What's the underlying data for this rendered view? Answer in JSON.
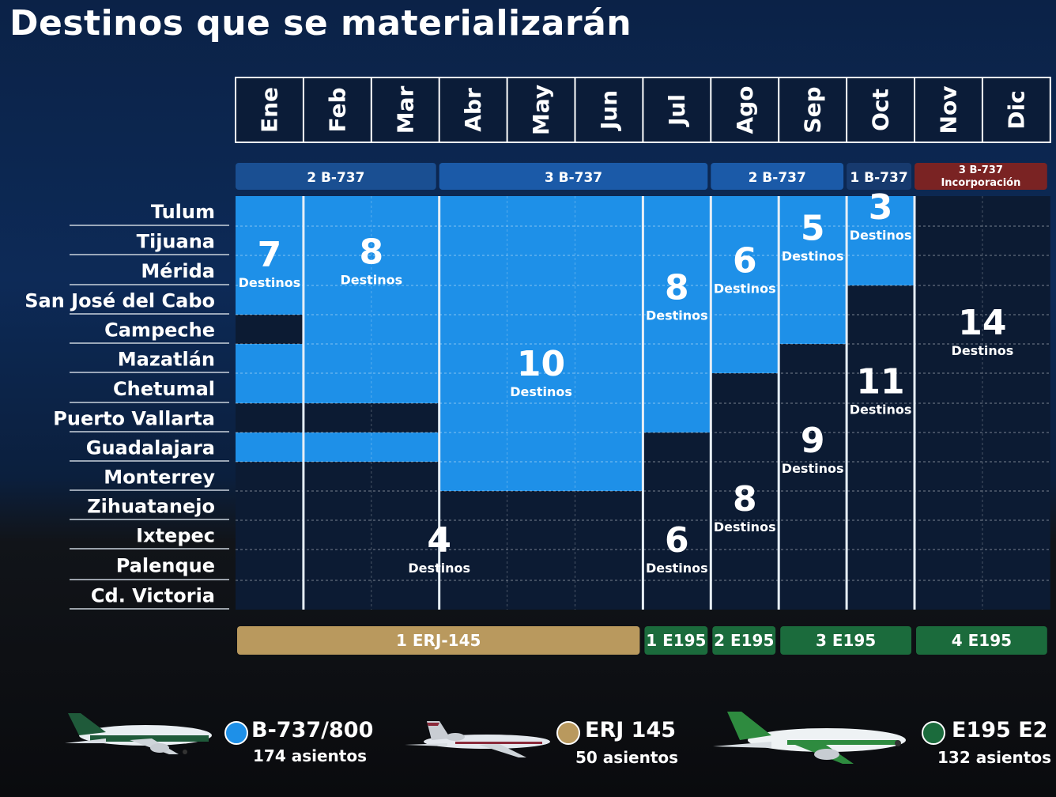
{
  "title": "Destinos que se materializarán",
  "colors": {
    "b737": "#1e90e8",
    "b737_dark": "#0f3260",
    "erj": "#b9995e",
    "e195": "#1b6b3c",
    "incorporacion": "#7a2323",
    "row_bg": "#0c1b33"
  },
  "chart_data": {
    "type": "heatmap",
    "months": [
      "Ene",
      "Feb",
      "Mar",
      "Abr",
      "May",
      "Jun",
      "Jul",
      "Ago",
      "Sep",
      "Oct",
      "Nov",
      "Dic"
    ],
    "destinations": [
      "Tulum",
      "Tijuana",
      "Mérida",
      "San José del Cabo",
      "Campeche",
      "Mazatlán",
      "Chetumal",
      "Puerto Vallarta",
      "Guadalajara",
      "Monterrey",
      "Zihuatanejo",
      "Ixtepec",
      "Palenque",
      "Cd. Victoria"
    ],
    "cells": [
      {
        "aircraft": "B-737",
        "months": [
          0,
          0
        ],
        "destinations": [
          0,
          3
        ]
      },
      {
        "aircraft": "B-737",
        "months": [
          0,
          0
        ],
        "destinations": [
          5,
          6
        ]
      },
      {
        "aircraft": "B-737",
        "months": [
          0,
          0
        ],
        "destinations": [
          8,
          8
        ]
      },
      {
        "aircraft": "B-737",
        "months": [
          1,
          2
        ],
        "destinations": [
          0,
          6
        ]
      },
      {
        "aircraft": "B-737",
        "months": [
          1,
          2
        ],
        "destinations": [
          8,
          8
        ]
      },
      {
        "aircraft": "B-737",
        "months": [
          3,
          5
        ],
        "destinations": [
          0,
          9
        ]
      },
      {
        "aircraft": "B-737",
        "months": [
          6,
          6
        ],
        "destinations": [
          0,
          7
        ]
      },
      {
        "aircraft": "B-737",
        "months": [
          7,
          7
        ],
        "destinations": [
          0,
          5
        ]
      },
      {
        "aircraft": "B-737",
        "months": [
          8,
          8
        ],
        "destinations": [
          0,
          4
        ]
      },
      {
        "aircraft": "B-737",
        "months": [
          9,
          9
        ],
        "destinations": [
          0,
          2
        ]
      },
      {
        "aircraft": "ERJ 145",
        "months": [
          0,
          5
        ],
        "destinations": [
          10,
          13
        ]
      },
      {
        "aircraft": "E195 E2",
        "months": [
          6,
          6
        ],
        "destinations": [
          8,
          13
        ]
      },
      {
        "aircraft": "E195 E2",
        "months": [
          7,
          7
        ],
        "destinations": [
          6,
          13
        ]
      },
      {
        "aircraft": "E195 E2",
        "months": [
          8,
          8
        ],
        "destinations": [
          5,
          13
        ]
      },
      {
        "aircraft": "E195 E2",
        "months": [
          9,
          9
        ],
        "destinations": [
          3,
          13
        ]
      },
      {
        "aircraft": "E195 E2",
        "months": [
          10,
          11
        ],
        "destinations": [
          0,
          13
        ]
      }
    ],
    "counts": [
      {
        "value": "7",
        "label": "Destinos",
        "aircraft": "B-737",
        "month": 0,
        "row": 2
      },
      {
        "value": "8",
        "label": "Destinos",
        "aircraft": "B-737",
        "month": 1.5,
        "row": 1.9
      },
      {
        "value": "10",
        "label": "Destinos",
        "aircraft": "B-737",
        "month": 4,
        "row": 5.7
      },
      {
        "value": "8",
        "label": "Destinos",
        "aircraft": "B-737",
        "month": 6,
        "row": 3.1
      },
      {
        "value": "6",
        "label": "Destinos",
        "aircraft": "B-737",
        "month": 7,
        "row": 2.2
      },
      {
        "value": "5",
        "label": "Destinos",
        "aircraft": "B-737",
        "month": 8,
        "row": 1.1
      },
      {
        "value": "3",
        "label": "Destinos",
        "aircraft": "B-737",
        "month": 9,
        "row": 0.4
      },
      {
        "value": "4",
        "label": "Destinos",
        "aircraft": "ERJ 145",
        "month": 2.5,
        "row": 11.7
      },
      {
        "value": "6",
        "label": "Destinos",
        "aircraft": "E195 E2",
        "month": 6,
        "row": 11.7
      },
      {
        "value": "8",
        "label": "Destinos",
        "aircraft": "E195 E2",
        "month": 7,
        "row": 10.3
      },
      {
        "value": "9",
        "label": "Destinos",
        "aircraft": "E195 E2",
        "month": 8,
        "row": 8.3
      },
      {
        "value": "11",
        "label": "Destinos",
        "aircraft": "E195 E2",
        "month": 9,
        "row": 6.3
      },
      {
        "value": "14",
        "label": "Destinos",
        "aircraft": "E195 E2",
        "month": 10.5,
        "row": 4.3
      }
    ],
    "fleet_top": [
      {
        "label": "2 B-737",
        "months": [
          0,
          2
        ]
      },
      {
        "label": "3 B-737",
        "months": [
          3,
          6
        ]
      },
      {
        "label": "2 B-737",
        "months": [
          7,
          8
        ]
      },
      {
        "label": "1 B-737",
        "months": [
          9,
          9
        ]
      },
      {
        "label": "3 B-737",
        "sublabel": "Incorporación",
        "months": [
          10,
          11
        ]
      }
    ],
    "fleet_bottom": [
      {
        "label": "1 ERJ-145",
        "months": [
          0,
          5
        ]
      },
      {
        "label": "1 E195",
        "months": [
          6,
          6
        ]
      },
      {
        "label": "2 E195",
        "months": [
          7,
          7
        ]
      },
      {
        "label": "3 E195",
        "months": [
          8,
          9
        ]
      },
      {
        "label": "4 E195",
        "months": [
          10,
          11
        ]
      }
    ]
  },
  "legend": [
    {
      "name": "B-737/800",
      "seats": "174 asientos",
      "icon": "airplane-aeromexico-icon"
    },
    {
      "name": "ERJ 145",
      "seats": "50 asientos",
      "icon": "airplane-erj-icon"
    },
    {
      "name": "E195 E2",
      "seats": "132 asientos",
      "icon": "airplane-e195-icon"
    }
  ]
}
